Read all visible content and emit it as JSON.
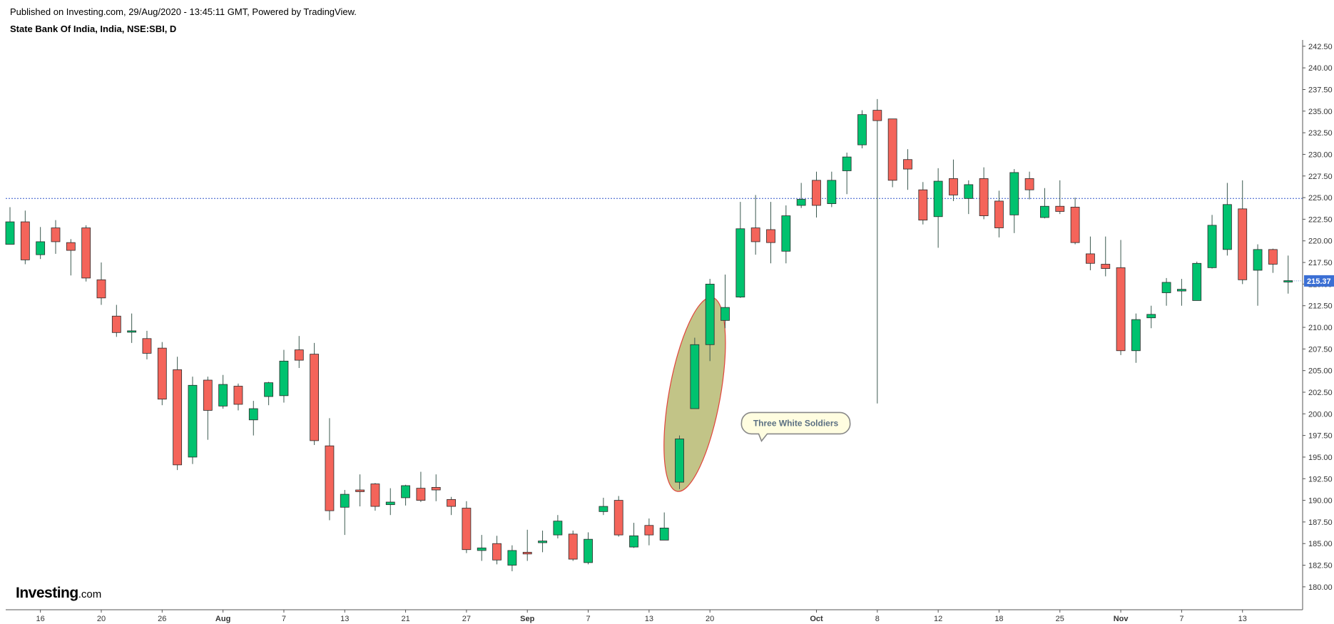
{
  "header": {
    "published": "Published on Investing.com, 29/Aug/2020 - 13:45:11 GMT, Powered by TradingView.",
    "symbol": "State Bank Of India, India, NSE:SBI, D"
  },
  "brand": {
    "name": "Investing",
    "suffix": ".com"
  },
  "colors": {
    "up": "#00c26f",
    "down": "#f4645a",
    "wick": "#3c5a50",
    "priceLine": "#3156c9",
    "priceTag": "#3b6fd4",
    "ellipseFill": "#c2c487",
    "ellipseStroke": "#e0443b",
    "calloutFill": "#fffde0",
    "calloutStroke": "#888888",
    "axis": "#555555"
  },
  "chart_data": {
    "type": "candlestick",
    "title": "State Bank Of India, India, NSE:SBI, D",
    "xlabel": "",
    "ylabel": "",
    "ylim": [
      179.0,
      242.9
    ],
    "grid": false,
    "y_ticks": [
      "180.00",
      "182.50",
      "185.00",
      "187.50",
      "190.00",
      "192.50",
      "195.00",
      "197.50",
      "200.00",
      "202.50",
      "205.00",
      "207.50",
      "210.00",
      "212.50",
      "215.00",
      "217.50",
      "220.00",
      "222.50",
      "225.00",
      "227.50",
      "230.00",
      "232.50",
      "235.00",
      "237.50",
      "240.00",
      "242.50"
    ],
    "x_ticks": [
      {
        "label": "16",
        "index": 2
      },
      {
        "label": "20",
        "index": 6
      },
      {
        "label": "26",
        "index": 10
      },
      {
        "label": "Aug",
        "index": 14
      },
      {
        "label": "7",
        "index": 18
      },
      {
        "label": "13",
        "index": 22
      },
      {
        "label": "21",
        "index": 26
      },
      {
        "label": "27",
        "index": 30
      },
      {
        "label": "Sep",
        "index": 34
      },
      {
        "label": "7",
        "index": 38
      },
      {
        "label": "13",
        "index": 42
      },
      {
        "label": "20",
        "index": 46
      },
      {
        "label": "Oct",
        "index": 53
      },
      {
        "label": "8",
        "index": 57
      },
      {
        "label": "12",
        "index": 61
      },
      {
        "label": "18",
        "index": 65
      },
      {
        "label": "25",
        "index": 69
      },
      {
        "label": "Nov",
        "index": 73
      },
      {
        "label": "7",
        "index": 77
      },
      {
        "label": "13",
        "index": 81
      }
    ],
    "current_price": 215.37,
    "current_price_label": "215.37",
    "reference_line": 224.9,
    "candles": [
      {
        "o": 219.6,
        "h": 223.9,
        "l": 219.6,
        "c": 222.2
      },
      {
        "o": 222.2,
        "h": 223.5,
        "l": 217.3,
        "c": 217.8
      },
      {
        "o": 218.4,
        "h": 221.6,
        "l": 217.9,
        "c": 219.9
      },
      {
        "o": 221.5,
        "h": 222.4,
        "l": 218.5,
        "c": 219.9
      },
      {
        "o": 219.8,
        "h": 220.2,
        "l": 216.0,
        "c": 218.9
      },
      {
        "o": 221.5,
        "h": 221.8,
        "l": 215.3,
        "c": 215.7
      },
      {
        "o": 215.5,
        "h": 217.5,
        "l": 212.6,
        "c": 213.4
      },
      {
        "o": 211.3,
        "h": 212.6,
        "l": 208.9,
        "c": 209.4
      },
      {
        "o": 209.6,
        "h": 211.6,
        "l": 208.2,
        "c": 209.6
      },
      {
        "o": 208.7,
        "h": 209.6,
        "l": 206.3,
        "c": 207.0
      },
      {
        "o": 207.6,
        "h": 208.3,
        "l": 201.0,
        "c": 201.7
      },
      {
        "o": 205.1,
        "h": 206.6,
        "l": 193.5,
        "c": 194.1
      },
      {
        "o": 195.0,
        "h": 204.3,
        "l": 194.2,
        "c": 203.3
      },
      {
        "o": 203.9,
        "h": 204.3,
        "l": 197.0,
        "c": 200.4
      },
      {
        "o": 200.9,
        "h": 204.5,
        "l": 200.6,
        "c": 203.4
      },
      {
        "o": 203.2,
        "h": 203.5,
        "l": 200.4,
        "c": 201.1
      },
      {
        "o": 199.3,
        "h": 201.5,
        "l": 197.5,
        "c": 200.6
      },
      {
        "o": 202.0,
        "h": 203.7,
        "l": 201.0,
        "c": 203.6
      },
      {
        "o": 202.1,
        "h": 207.4,
        "l": 201.3,
        "c": 206.1
      },
      {
        "o": 207.4,
        "h": 209.0,
        "l": 205.3,
        "c": 206.2
      },
      {
        "o": 206.9,
        "h": 208.2,
        "l": 196.4,
        "c": 196.9
      },
      {
        "o": 196.3,
        "h": 199.5,
        "l": 187.7,
        "c": 188.8
      },
      {
        "o": 189.2,
        "h": 191.2,
        "l": 186.0,
        "c": 190.7
      },
      {
        "o": 191.2,
        "h": 193.0,
        "l": 189.3,
        "c": 191.0
      },
      {
        "o": 191.9,
        "h": 192.0,
        "l": 188.8,
        "c": 189.3
      },
      {
        "o": 189.5,
        "h": 191.4,
        "l": 188.3,
        "c": 189.8
      },
      {
        "o": 190.3,
        "h": 191.8,
        "l": 189.4,
        "c": 191.7
      },
      {
        "o": 191.4,
        "h": 193.3,
        "l": 189.8,
        "c": 190.0
      },
      {
        "o": 191.5,
        "h": 193.0,
        "l": 189.9,
        "c": 191.2
      },
      {
        "o": 190.1,
        "h": 190.4,
        "l": 188.3,
        "c": 189.3
      },
      {
        "o": 189.1,
        "h": 189.9,
        "l": 183.9,
        "c": 184.3
      },
      {
        "o": 184.2,
        "h": 186.0,
        "l": 183.0,
        "c": 184.5
      },
      {
        "o": 185.0,
        "h": 185.9,
        "l": 182.6,
        "c": 183.1
      },
      {
        "o": 182.5,
        "h": 184.8,
        "l": 181.8,
        "c": 184.2
      },
      {
        "o": 184.0,
        "h": 186.6,
        "l": 183.0,
        "c": 183.8
      },
      {
        "o": 185.1,
        "h": 186.5,
        "l": 184.0,
        "c": 185.3
      },
      {
        "o": 186.0,
        "h": 188.3,
        "l": 185.6,
        "c": 187.6
      },
      {
        "o": 186.1,
        "h": 186.5,
        "l": 183.0,
        "c": 183.2
      },
      {
        "o": 182.8,
        "h": 186.3,
        "l": 182.6,
        "c": 185.5
      },
      {
        "o": 188.7,
        "h": 190.3,
        "l": 188.3,
        "c": 189.3
      },
      {
        "o": 190.0,
        "h": 190.5,
        "l": 185.8,
        "c": 186.0
      },
      {
        "o": 184.6,
        "h": 187.4,
        "l": 184.5,
        "c": 185.9
      },
      {
        "o": 187.1,
        "h": 187.9,
        "l": 184.8,
        "c": 186.0
      },
      {
        "o": 185.4,
        "h": 188.6,
        "l": 185.4,
        "c": 186.8
      },
      {
        "o": 192.1,
        "h": 197.5,
        "l": 191.3,
        "c": 197.1
      },
      {
        "o": 200.6,
        "h": 208.8,
        "l": 200.6,
        "c": 208.0
      },
      {
        "o": 208.0,
        "h": 215.6,
        "l": 206.1,
        "c": 215.0
      },
      {
        "o": 210.8,
        "h": 216.1,
        "l": 209.9,
        "c": 212.3
      },
      {
        "o": 213.5,
        "h": 224.5,
        "l": 213.4,
        "c": 221.4
      },
      {
        "o": 221.5,
        "h": 225.3,
        "l": 218.4,
        "c": 219.9
      },
      {
        "o": 221.3,
        "h": 224.5,
        "l": 217.4,
        "c": 219.8
      },
      {
        "o": 218.8,
        "h": 224.1,
        "l": 217.4,
        "c": 222.9
      },
      {
        "o": 224.1,
        "h": 226.7,
        "l": 223.8,
        "c": 224.8
      },
      {
        "o": 227.0,
        "h": 228.0,
        "l": 222.7,
        "c": 224.1
      },
      {
        "o": 224.3,
        "h": 228.0,
        "l": 223.9,
        "c": 227.0
      },
      {
        "o": 228.1,
        "h": 230.2,
        "l": 225.4,
        "c": 229.7
      },
      {
        "o": 231.1,
        "h": 235.1,
        "l": 230.7,
        "c": 234.6
      },
      {
        "o": 235.1,
        "h": 236.4,
        "l": 201.2,
        "c": 233.9
      },
      {
        "o": 234.1,
        "h": 234.1,
        "l": 226.2,
        "c": 227.0
      },
      {
        "o": 229.4,
        "h": 230.6,
        "l": 225.9,
        "c": 228.3
      },
      {
        "o": 225.9,
        "h": 226.8,
        "l": 221.9,
        "c": 222.4
      },
      {
        "o": 222.8,
        "h": 228.4,
        "l": 219.2,
        "c": 226.9
      },
      {
        "o": 227.2,
        "h": 229.4,
        "l": 224.6,
        "c": 225.3
      },
      {
        "o": 224.9,
        "h": 227.0,
        "l": 223.1,
        "c": 226.5
      },
      {
        "o": 227.2,
        "h": 228.5,
        "l": 222.5,
        "c": 222.9
      },
      {
        "o": 224.6,
        "h": 225.8,
        "l": 220.4,
        "c": 221.5
      },
      {
        "o": 223.0,
        "h": 228.3,
        "l": 220.9,
        "c": 227.9
      },
      {
        "o": 227.2,
        "h": 228.0,
        "l": 224.8,
        "c": 225.9
      },
      {
        "o": 222.7,
        "h": 226.1,
        "l": 222.6,
        "c": 224.0
      },
      {
        "o": 224.0,
        "h": 227.0,
        "l": 223.1,
        "c": 223.4
      },
      {
        "o": 223.9,
        "h": 225.0,
        "l": 219.6,
        "c": 219.8
      },
      {
        "o": 218.5,
        "h": 220.5,
        "l": 216.6,
        "c": 217.4
      },
      {
        "o": 217.3,
        "h": 220.5,
        "l": 215.9,
        "c": 216.8
      },
      {
        "o": 216.9,
        "h": 220.1,
        "l": 206.8,
        "c": 207.3
      },
      {
        "o": 207.3,
        "h": 211.6,
        "l": 205.9,
        "c": 210.9
      },
      {
        "o": 211.1,
        "h": 212.5,
        "l": 209.9,
        "c": 211.5
      },
      {
        "o": 214.0,
        "h": 215.7,
        "l": 212.5,
        "c": 215.2
      },
      {
        "o": 214.2,
        "h": 215.6,
        "l": 212.5,
        "c": 214.4
      },
      {
        "o": 213.1,
        "h": 217.6,
        "l": 213.1,
        "c": 217.4
      },
      {
        "o": 216.9,
        "h": 223.0,
        "l": 216.8,
        "c": 221.8
      },
      {
        "o": 219.0,
        "h": 226.7,
        "l": 218.3,
        "c": 224.2
      },
      {
        "o": 223.7,
        "h": 227.0,
        "l": 215.0,
        "c": 215.5
      },
      {
        "o": 216.6,
        "h": 219.6,
        "l": 212.5,
        "c": 219.0
      },
      {
        "o": 219.0,
        "h": 219.1,
        "l": 216.3,
        "c": 217.3
      },
      {
        "o": 215.3,
        "h": 218.3,
        "l": 213.9,
        "c": 215.4
      }
    ],
    "annotations": [
      {
        "type": "ellipse",
        "from_index": 44,
        "to_index": 46,
        "y_low": 192.5,
        "y_high": 212.0
      },
      {
        "type": "callout",
        "text": "Three White Soldiers",
        "anchor_index": 47,
        "y": 199.0
      }
    ]
  }
}
